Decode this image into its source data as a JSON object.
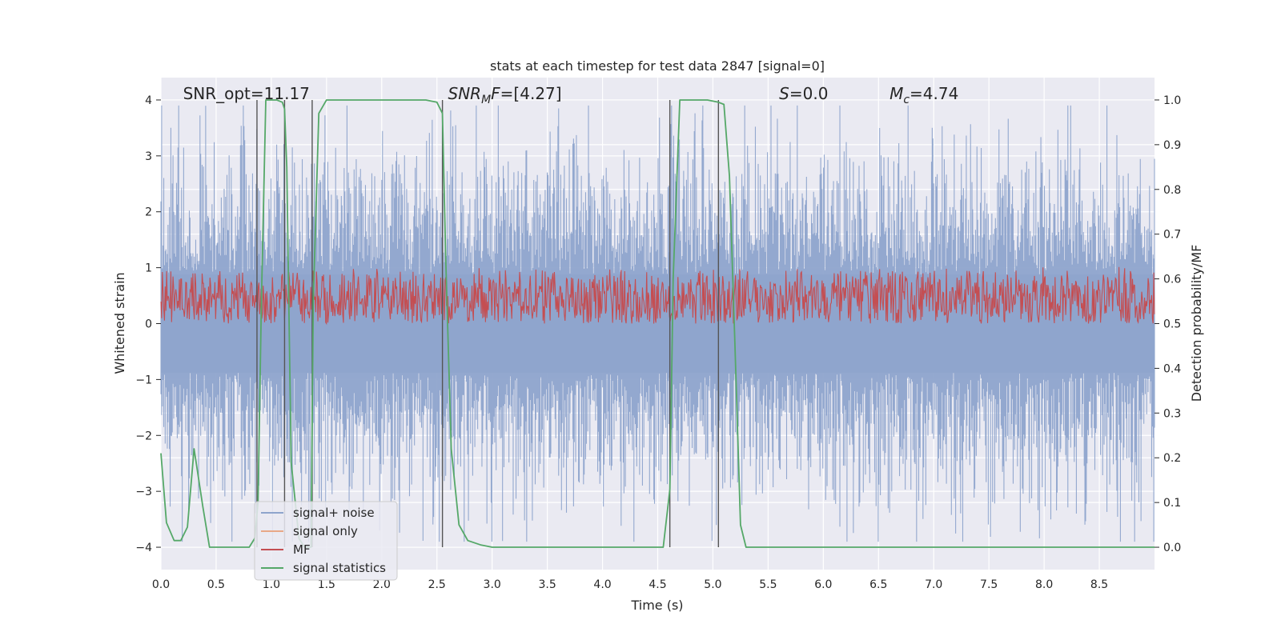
{
  "chart_data": {
    "type": "line",
    "title": "stats at each timestep for test data 2847 [signal=0]",
    "xlabel": "Time (s)",
    "ylabel": "Whitened strain",
    "ylabel_right": "Detection probability/MF",
    "xlim": [
      0,
      9
    ],
    "ylim": [
      -4.4,
      4.4
    ],
    "ylim_right": [
      -0.05,
      1.05
    ],
    "xticks": [
      0.0,
      0.5,
      1.0,
      1.5,
      2.0,
      2.5,
      3.0,
      3.5,
      4.0,
      4.5,
      5.0,
      5.5,
      6.0,
      6.5,
      7.0,
      7.5,
      8.0,
      8.5
    ],
    "xtick_labels": [
      "0.0",
      "0.5",
      "1.0",
      "1.5",
      "2.0",
      "2.5",
      "3.0",
      "3.5",
      "4.0",
      "4.5",
      "5.0",
      "5.5",
      "6.0",
      "6.5",
      "7.0",
      "7.5",
      "8.0",
      "8.5"
    ],
    "yticks": [
      4,
      3,
      2,
      1,
      0,
      -1,
      -2,
      -3,
      -4
    ],
    "ytick_labels": [
      "4",
      "3",
      "2",
      "1",
      "0",
      "−1",
      "−2",
      "−3",
      "−4"
    ],
    "yticks_right": [
      1.0,
      0.9,
      0.8,
      0.7,
      0.6,
      0.5,
      0.4,
      0.3,
      0.2,
      0.1,
      0.0
    ],
    "ytick_labels_right": [
      "1.0",
      "0.9",
      "0.8",
      "0.7",
      "0.6",
      "0.5",
      "0.4",
      "0.3",
      "0.2",
      "0.1",
      "0.0"
    ],
    "annotations": [
      {
        "name": "snr-opt",
        "text": "SNR_opt=11.17",
        "x": 0.2
      },
      {
        "name": "snr-mf",
        "text": "SNR_MF=[4.27]",
        "math": {
          "base": "SNR",
          "sub": "M",
          "rest": "F=[4.27]"
        },
        "x": 2.6
      },
      {
        "name": "s-value",
        "text": "S=0.0",
        "math": {
          "base": "S",
          "sub": "",
          "rest": "=0.0"
        },
        "x": 5.6
      },
      {
        "name": "mc-value",
        "text": "Mc=4.74",
        "math": {
          "base": "M",
          "sub": "c",
          "rest": "=4.74"
        },
        "x": 6.6
      }
    ],
    "legend": {
      "placement": "lower-left",
      "entries": [
        {
          "label": "signal+ noise",
          "color": "#8ea4cc"
        },
        {
          "label": "signal only",
          "color": "#e8a887"
        },
        {
          "label": "MF",
          "color": "#c44e52"
        },
        {
          "label": "signal statistics",
          "color": "#55a868"
        }
      ]
    },
    "noise_envelope": {
      "typical_amplitude": 1.6,
      "peak_amplitude": 3.9,
      "samples": 1400
    },
    "mf_band": {
      "min": 0.5,
      "max": 0.63,
      "samples": 1400
    },
    "vertical_lines_x": [
      0.87,
      1.12,
      1.37,
      2.55,
      4.61,
      5.05
    ],
    "series": [
      {
        "name": "signal statistics",
        "axis": "right",
        "color": "#55a868",
        "x": [
          0.0,
          0.05,
          0.12,
          0.18,
          0.24,
          0.3,
          0.38,
          0.44,
          0.5,
          0.6,
          0.7,
          0.8,
          0.85,
          0.88,
          0.91,
          0.95,
          1.0,
          1.05,
          1.1,
          1.12,
          1.14,
          1.18,
          1.25,
          1.3,
          1.36,
          1.38,
          1.43,
          1.5,
          1.6,
          1.8,
          2.0,
          2.2,
          2.4,
          2.5,
          2.55,
          2.58,
          2.63,
          2.7,
          2.78,
          2.9,
          3.0,
          3.2,
          3.5,
          4.0,
          4.4,
          4.55,
          4.61,
          4.64,
          4.7,
          4.8,
          4.95,
          5.05,
          5.1,
          5.15,
          5.2,
          5.25,
          5.3,
          5.5,
          6.0,
          7.0,
          8.0,
          9.0
        ],
        "values": [
          0.21,
          0.055,
          0.015,
          0.015,
          0.045,
          0.22,
          0.09,
          0.0,
          0.0,
          0.0,
          0.0,
          0.0,
          0.02,
          0.1,
          0.55,
          1.0,
          1.0,
          1.0,
          0.995,
          0.98,
          0.85,
          0.19,
          0.02,
          0.0,
          0.0,
          0.55,
          0.97,
          1.0,
          1.0,
          1.0,
          1.0,
          1.0,
          1.0,
          0.995,
          0.97,
          0.64,
          0.22,
          0.05,
          0.015,
          0.005,
          0.0,
          0.0,
          0.0,
          0.0,
          0.0,
          0.0,
          0.13,
          0.6,
          1.0,
          1.0,
          1.0,
          0.995,
          0.99,
          0.83,
          0.45,
          0.05,
          0.0,
          0.0,
          0.0,
          0.0,
          0.0,
          0.0
        ]
      }
    ]
  }
}
